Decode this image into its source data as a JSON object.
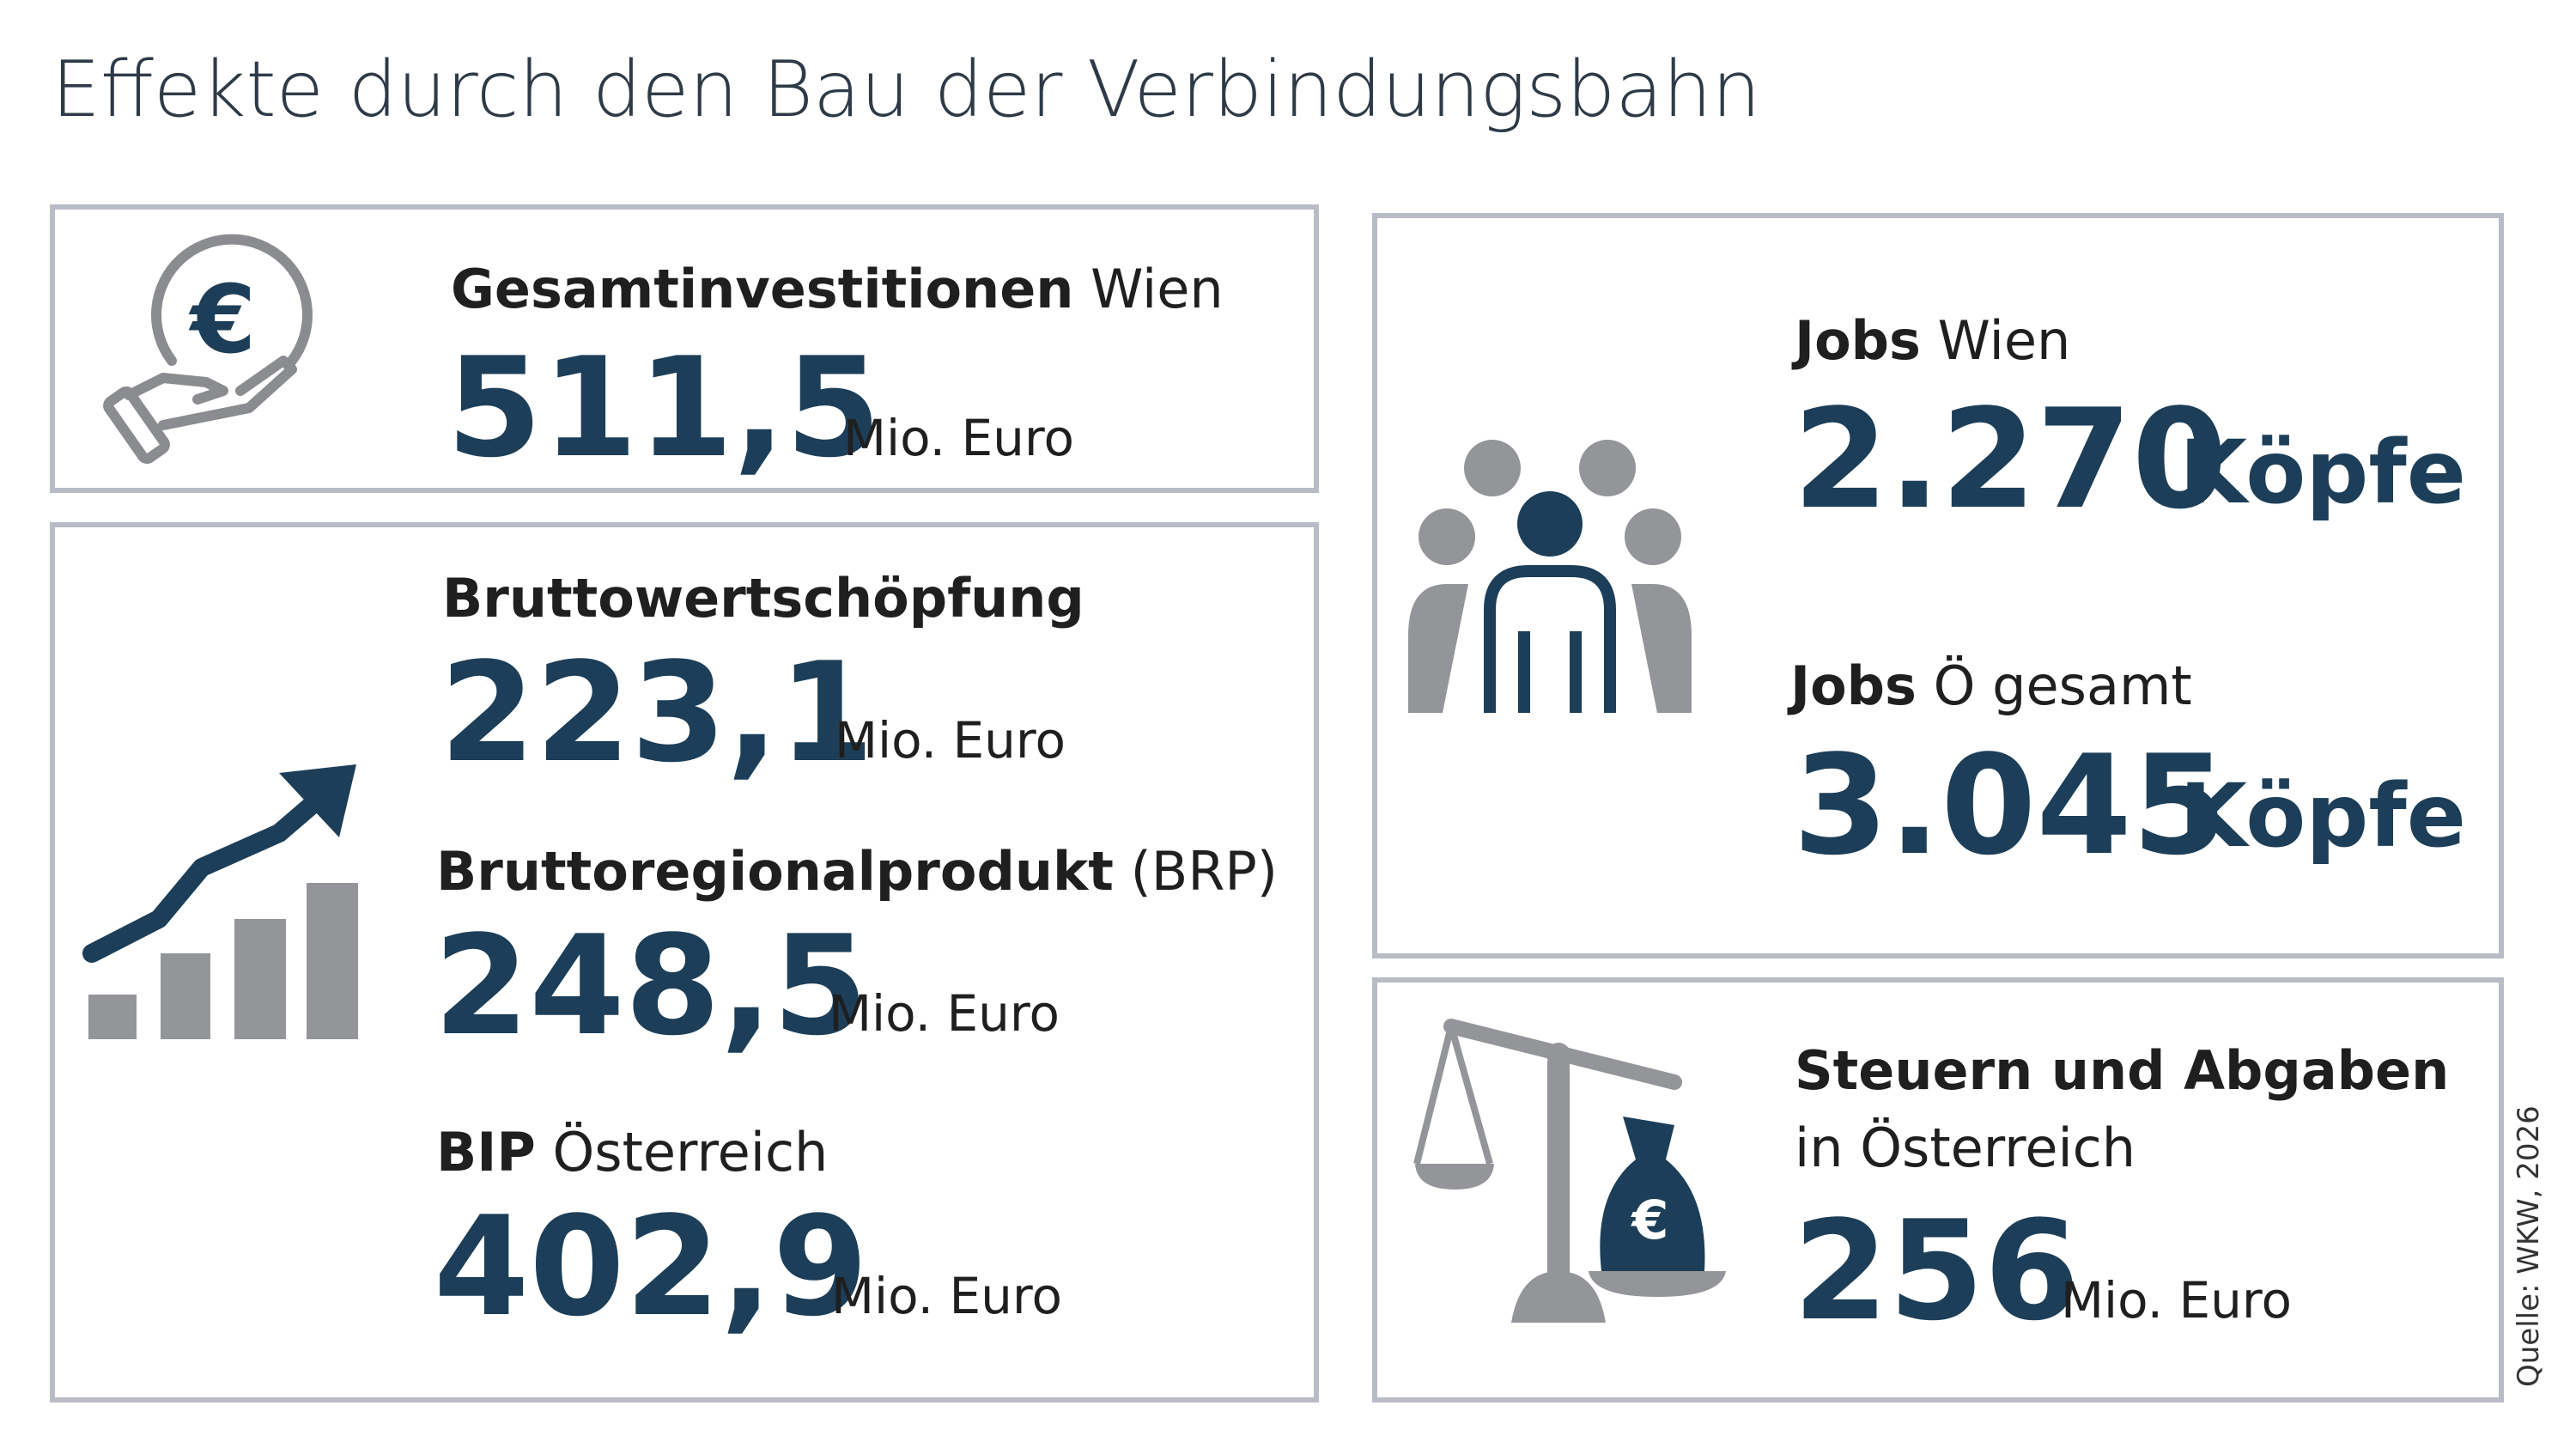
{
  "title": "Effekte durch den Bau der Verbindungsbahn",
  "colors": {
    "navy": "#1d3e58",
    "grey": "#939598",
    "border": "#b9bcc6"
  },
  "invest": {
    "label_bold": "Gesamtinvestitionen",
    "label_rest": "Wien",
    "value": "511,5",
    "unit": "Mio. Euro",
    "icon": "euro-coin-hand-icon"
  },
  "bws": {
    "label_bold": "Bruttowertschöpfung",
    "value": "223,1",
    "unit": "Mio. Euro"
  },
  "brp": {
    "label_bold": "Bruttoregionalprodukt",
    "label_rest": "(BRP)",
    "value": "248,5",
    "unit": "Mio. Euro"
  },
  "bip": {
    "label_bold": "BIP",
    "label_rest": "Österreich",
    "value": "402,9",
    "unit": "Mio. Euro"
  },
  "growth_icon": "growth-chart-icon",
  "jobs_wien": {
    "label_bold": "Jobs",
    "label_rest": "Wien",
    "value": "2.270",
    "unit": "Köpfe"
  },
  "jobs_oe": {
    "label_bold": "Jobs",
    "label_rest": "Ö gesamt",
    "value": "3.045",
    "unit": "Köpfe"
  },
  "people_icon": "people-group-icon",
  "tax": {
    "label_bold": "Steuern und Abgaben",
    "label_line2": "in Österreich",
    "value": "256",
    "unit": "Mio. Euro",
    "icon": "scale-money-bag-icon"
  },
  "source": "Quelle: WKW, 2026"
}
